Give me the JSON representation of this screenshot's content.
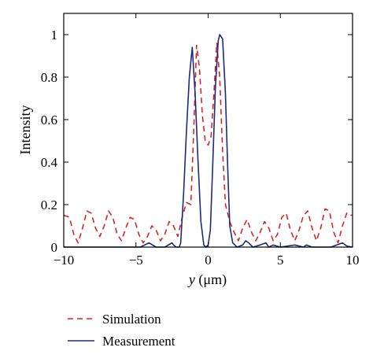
{
  "chart_data": {
    "type": "line",
    "xlabel_var": "y",
    "xlabel_unit": "(μm)",
    "ylabel": "Intensity",
    "xlim": [
      -10,
      10
    ],
    "ylim": [
      0,
      1.1
    ],
    "xticks": [
      -10,
      -5,
      0,
      5,
      10
    ],
    "xtick_labels": [
      "−10",
      "−5",
      "0",
      "5",
      "10"
    ],
    "yticks": [
      0,
      0.2,
      0.4,
      0.6,
      0.8,
      1
    ],
    "ytick_labels": [
      "0",
      "0.2",
      "0.4",
      "0.6",
      "0.8",
      "1"
    ],
    "grid": false,
    "legend_position": "below",
    "series": [
      {
        "name": "Simulation",
        "color": "#d62728",
        "style": "dashed",
        "x": [
          -10,
          -9.6,
          -9.3,
          -9.0,
          -8.7,
          -8.4,
          -8.1,
          -7.8,
          -7.5,
          -7.2,
          -6.9,
          -6.6,
          -6.3,
          -6.0,
          -5.7,
          -5.4,
          -5.1,
          -4.8,
          -4.5,
          -4.2,
          -3.9,
          -3.6,
          -3.3,
          -3.0,
          -2.7,
          -2.4,
          -2.1,
          -1.8,
          -1.5,
          -1.2,
          -1.0,
          -0.8,
          -0.6,
          -0.4,
          -0.2,
          0.0,
          0.2,
          0.4,
          0.6,
          0.8,
          1.0,
          1.2,
          1.5,
          1.8,
          2.1,
          2.4,
          2.7,
          3.0,
          3.3,
          3.6,
          3.9,
          4.2,
          4.5,
          4.8,
          5.1,
          5.4,
          5.7,
          6.0,
          6.3,
          6.6,
          6.9,
          7.2,
          7.5,
          7.8,
          8.1,
          8.4,
          8.7,
          9.0,
          9.3,
          9.6,
          9.8,
          10.0
        ],
        "y": [
          0.15,
          0.14,
          0.06,
          0.02,
          0.09,
          0.17,
          0.16,
          0.09,
          0.05,
          0.1,
          0.17,
          0.14,
          0.06,
          0.03,
          0.09,
          0.14,
          0.13,
          0.06,
          0.02,
          0.05,
          0.1,
          0.08,
          0.03,
          0.06,
          0.12,
          0.1,
          0.05,
          0.14,
          0.21,
          0.2,
          0.55,
          0.95,
          0.84,
          0.62,
          0.5,
          0.48,
          0.52,
          0.72,
          0.96,
          0.8,
          0.45,
          0.2,
          0.12,
          0.07,
          0.03,
          0.09,
          0.13,
          0.07,
          0.03,
          0.07,
          0.12,
          0.09,
          0.03,
          0.06,
          0.14,
          0.16,
          0.08,
          0.03,
          0.08,
          0.15,
          0.17,
          0.09,
          0.03,
          0.09,
          0.18,
          0.17,
          0.07,
          0.02,
          0.1,
          0.16,
          0.15,
          0.15
        ]
      },
      {
        "name": "Measurement",
        "color": "#1f2a7a",
        "style": "solid",
        "x": [
          -10,
          -8.5,
          -7.0,
          -5.5,
          -4.7,
          -4.4,
          -4.1,
          -3.6,
          -3.0,
          -2.5,
          -2.4,
          -2.2,
          -2.0,
          -1.9,
          -1.7,
          -1.5,
          -1.3,
          -1.1,
          -0.9,
          -0.7,
          -0.5,
          -0.3,
          -0.15,
          0.0,
          0.15,
          0.3,
          0.5,
          0.7,
          0.8,
          1.0,
          1.2,
          1.35,
          1.5,
          1.7,
          2.0,
          2.4,
          2.6,
          2.8,
          3.1,
          3.6,
          4.0,
          4.2,
          4.5,
          5.0,
          6.0,
          6.6,
          6.8,
          7.2,
          8.5,
          9.3,
          9.6,
          10.0
        ],
        "y": [
          0,
          0,
          0,
          0,
          0,
          0.01,
          0.02,
          0,
          0,
          0.02,
          0.01,
          0,
          0,
          0.02,
          0.25,
          0.55,
          0.8,
          0.94,
          0.72,
          0.4,
          0.12,
          0.01,
          0,
          0.01,
          0.08,
          0.35,
          0.75,
          0.97,
          1.0,
          0.98,
          0.72,
          0.38,
          0.1,
          0.02,
          0,
          0.01,
          0.03,
          0.02,
          0,
          0.01,
          0.02,
          0,
          0.01,
          0,
          0.01,
          0,
          0.01,
          0,
          0,
          0.02,
          0.005,
          0
        ]
      }
    ]
  }
}
